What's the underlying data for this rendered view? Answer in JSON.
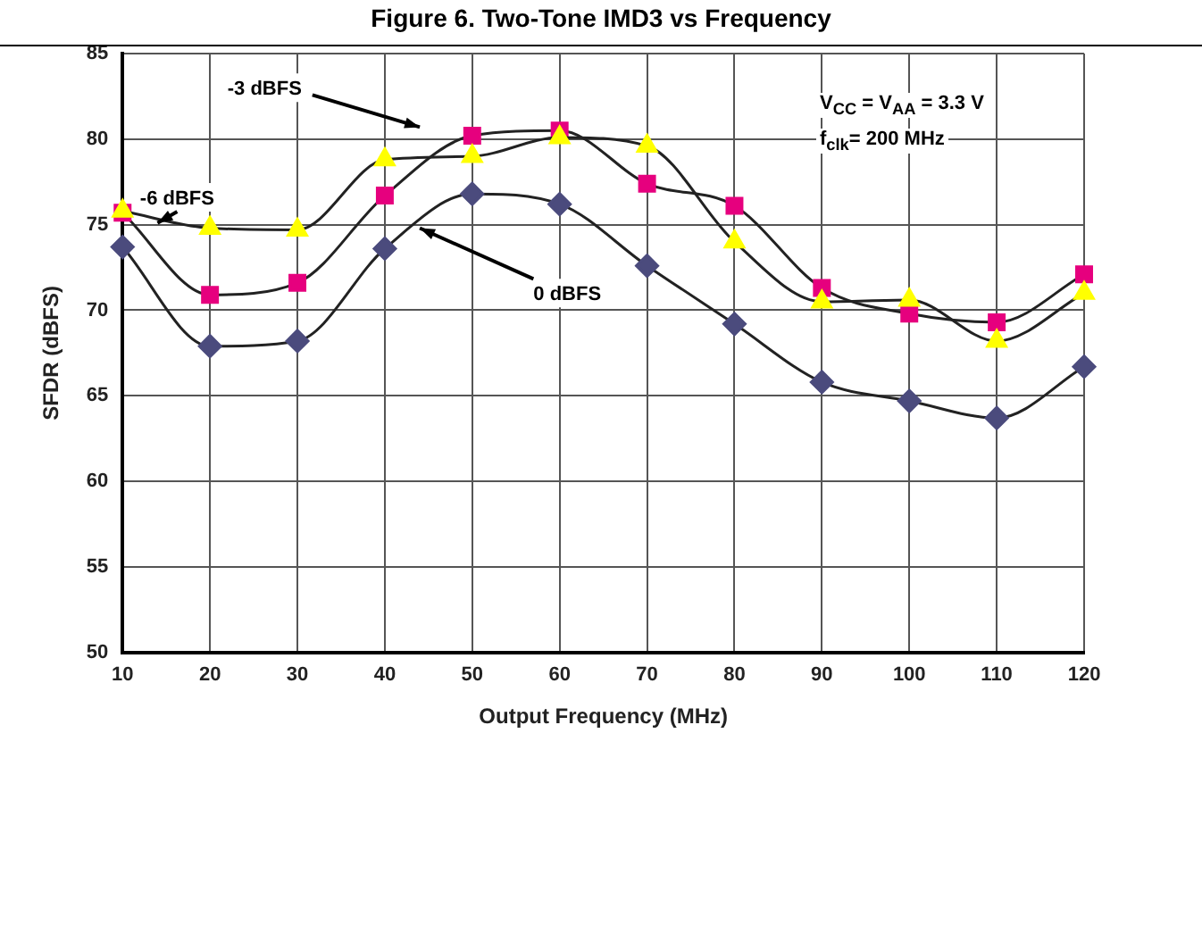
{
  "chart_data": {
    "type": "line",
    "title": "Figure 6. Two-Tone IMD3 vs Frequency",
    "xlabel": "Output Frequency (MHz)",
    "ylabel": "SFDR (dBFS)",
    "x": [
      10,
      20,
      30,
      40,
      50,
      60,
      70,
      80,
      90,
      100,
      110,
      120
    ],
    "xlim": [
      10,
      120
    ],
    "xticks": [
      10,
      20,
      30,
      40,
      50,
      60,
      70,
      80,
      90,
      100,
      110,
      120
    ],
    "ylim": [
      50,
      85
    ],
    "yticks": [
      50,
      55,
      60,
      65,
      70,
      75,
      80,
      85
    ],
    "grid": true,
    "legend": false,
    "line_style": "solid",
    "series": [
      {
        "name": "0 dBFS",
        "color": "#4b4b7d",
        "marker": "diamond",
        "values": [
          73.7,
          67.9,
          68.2,
          73.6,
          76.8,
          76.2,
          72.6,
          69.2,
          65.8,
          64.7,
          63.7,
          66.7
        ]
      },
      {
        "name": "-3 dBFS",
        "color": "#e6007e",
        "marker": "square",
        "values": [
          75.7,
          70.9,
          71.6,
          76.7,
          80.2,
          80.5,
          77.4,
          76.1,
          71.3,
          69.8,
          69.3,
          72.1
        ]
      },
      {
        "name": "-6 dBFS",
        "color": "#ffff00",
        "marker": "triangle",
        "values": [
          75.8,
          74.8,
          74.7,
          78.8,
          79.0,
          80.1,
          79.6,
          74.0,
          70.5,
          70.6,
          68.2,
          71.0
        ]
      }
    ],
    "annotations": [
      "V$_{CC}$ = V$_{AA}$ = 3.3 V",
      "f$_{clk}$= 200 MHz"
    ]
  }
}
